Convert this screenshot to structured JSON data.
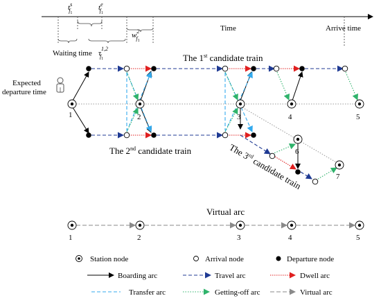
{
  "time_axis": {
    "label": "Time",
    "arrive_label": "Arrive time",
    "t_start_base": "t",
    "t_start_sub": "f",
    "t_start_sub2": "1",
    "t_start_sup": "s",
    "t_end_base": "t",
    "t_end_sub": "f",
    "t_end_sub2": "1",
    "t_end_sup": "e",
    "w_base": "w",
    "w_sub": "f",
    "w_sub2": "1",
    "w_sup": "2",
    "waiting_label": "Waiting time",
    "tau_base": "τ",
    "tau_sub": "f",
    "tau_sub2": "1",
    "tau_sup": "1,2"
  },
  "passenger": {
    "line1": "Expected",
    "line2": "departure time"
  },
  "train1": {
    "prefix": "The 1",
    "sup": "st",
    "suffix": " candidate train"
  },
  "train2": {
    "prefix": "The 2",
    "sup": "nd",
    "suffix": " candidate train"
  },
  "train3": {
    "prefix": "The 3",
    "sup": "rd",
    "suffix": " candidate train"
  },
  "stations": [
    "1",
    "2",
    "3",
    "4",
    "5"
  ],
  "station6": "6",
  "station7": "7",
  "virtual": {
    "title": "Virtual arc",
    "stations": [
      "1",
      "2",
      "3",
      "4",
      "5"
    ]
  },
  "legend": {
    "station_node": "Station node",
    "arrival_node": "Arrival node",
    "departure_node": "Departure node",
    "boarding_arc": "Boarding arc",
    "travel_arc": "Travel arc",
    "dwell_arc": "Dwell arc",
    "transfer_arc": "Transfer arc",
    "getting_off_arc": "Getting-off arc",
    "virtual_arc": "Virtual arc"
  },
  "colors": {
    "boarding": "#000000",
    "travel": "#1f3a93",
    "dwell": "#e02020",
    "transfer": "#33aaee",
    "getting_off": "#2fb36b",
    "virtual": "#8a8a8a",
    "station_line": "#999999"
  }
}
